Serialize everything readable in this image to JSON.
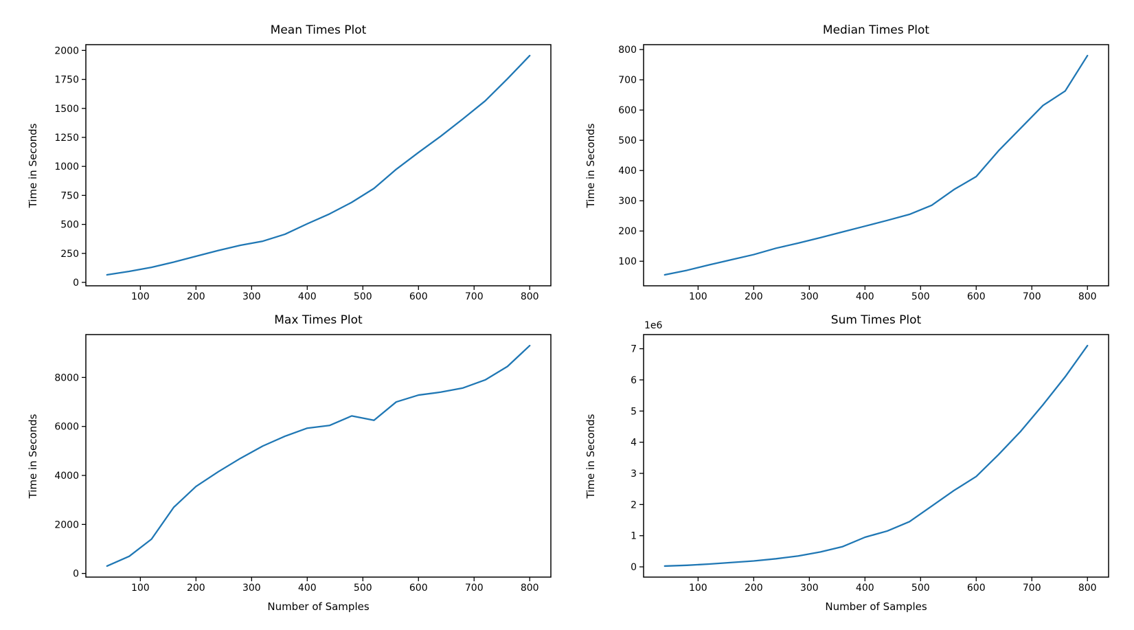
{
  "figure": {
    "background": "#ffffff"
  },
  "chart_data": [
    {
      "type": "line",
      "title": "Mean Times Plot",
      "ylabel": "Time in Seconds",
      "xlabel": "",
      "offset_text": "",
      "line_color": "#1f77b4",
      "grid": false,
      "legend": null,
      "x": [
        40,
        80,
        120,
        160,
        200,
        240,
        280,
        320,
        360,
        400,
        440,
        480,
        520,
        560,
        600,
        640,
        680,
        720,
        760,
        800
      ],
      "y": [
        65,
        95,
        130,
        175,
        225,
        275,
        320,
        355,
        415,
        505,
        590,
        690,
        810,
        975,
        1120,
        1260,
        1410,
        1565,
        1755,
        1955
      ],
      "xlim": [
        2,
        838
      ],
      "ylim": [
        -29.5,
        2049.5
      ],
      "xticks": [
        100,
        200,
        300,
        400,
        500,
        600,
        700,
        800
      ],
      "xtick_labels": [
        "100",
        "200",
        "300",
        "400",
        "500",
        "600",
        "700",
        "800"
      ],
      "yticks": [
        0,
        250,
        500,
        750,
        1000,
        1250,
        1500,
        1750,
        2000
      ],
      "ytick_labels": [
        "0",
        "250",
        "500",
        "750",
        "1000",
        "1250",
        "1500",
        "1750",
        "2000"
      ]
    },
    {
      "type": "line",
      "title": "Median Times Plot",
      "ylabel": "Time in Seconds",
      "xlabel": "",
      "offset_text": "",
      "line_color": "#1f77b4",
      "grid": false,
      "legend": null,
      "x": [
        40,
        80,
        120,
        160,
        200,
        240,
        280,
        320,
        360,
        400,
        440,
        480,
        520,
        560,
        600,
        640,
        680,
        720,
        760,
        800
      ],
      "y": [
        55,
        70,
        88,
        105,
        122,
        143,
        160,
        178,
        197,
        216,
        235,
        255,
        285,
        337,
        380,
        465,
        540,
        615,
        663,
        780
      ],
      "xlim": [
        2,
        838
      ],
      "ylim": [
        18.75,
        816.25
      ],
      "xticks": [
        100,
        200,
        300,
        400,
        500,
        600,
        700,
        800
      ],
      "xtick_labels": [
        "100",
        "200",
        "300",
        "400",
        "500",
        "600",
        "700",
        "800"
      ],
      "yticks": [
        100,
        200,
        300,
        400,
        500,
        600,
        700,
        800
      ],
      "ytick_labels": [
        "100",
        "200",
        "300",
        "400",
        "500",
        "600",
        "700",
        "800"
      ]
    },
    {
      "type": "line",
      "title": "Max Times Plot",
      "ylabel": "Time in Seconds",
      "xlabel": "Number of Samples",
      "offset_text": "",
      "line_color": "#1f77b4",
      "grid": false,
      "legend": null,
      "x": [
        40,
        80,
        120,
        160,
        200,
        240,
        280,
        320,
        360,
        400,
        440,
        480,
        520,
        560,
        600,
        640,
        680,
        720,
        760,
        800
      ],
      "y": [
        300,
        700,
        1400,
        2700,
        3550,
        4150,
        4700,
        5200,
        5600,
        5930,
        6040,
        6430,
        6250,
        7000,
        7280,
        7400,
        7570,
        7900,
        8450,
        9300
      ],
      "xlim": [
        2,
        838
      ],
      "ylim": [
        -150,
        9750
      ],
      "xticks": [
        100,
        200,
        300,
        400,
        500,
        600,
        700,
        800
      ],
      "xtick_labels": [
        "100",
        "200",
        "300",
        "400",
        "500",
        "600",
        "700",
        "800"
      ],
      "yticks": [
        0,
        2000,
        4000,
        6000,
        8000
      ],
      "ytick_labels": [
        "0",
        "2000",
        "4000",
        "6000",
        "8000"
      ]
    },
    {
      "type": "line",
      "title": "Sum Times Plot",
      "ylabel": "Time in Seconds",
      "xlabel": "Number of Samples",
      "offset_text": "1e6",
      "line_color": "#1f77b4",
      "grid": false,
      "legend": null,
      "x": [
        40,
        80,
        120,
        160,
        200,
        240,
        280,
        320,
        360,
        400,
        440,
        480,
        520,
        560,
        600,
        640,
        680,
        720,
        760,
        800
      ],
      "y": [
        25000,
        50000,
        90000,
        140000,
        190000,
        260000,
        350000,
        480000,
        650000,
        950000,
        1150000,
        1450000,
        1950000,
        2450000,
        2900000,
        3600000,
        4350000,
        5200000,
        6100000,
        7100000
      ],
      "xlim": [
        2,
        838
      ],
      "ylim": [
        -328750,
        7453750
      ],
      "xticks": [
        100,
        200,
        300,
        400,
        500,
        600,
        700,
        800
      ],
      "xtick_labels": [
        "100",
        "200",
        "300",
        "400",
        "500",
        "600",
        "700",
        "800"
      ],
      "yticks": [
        0,
        1000000,
        2000000,
        3000000,
        4000000,
        5000000,
        6000000,
        7000000
      ],
      "ytick_labels": [
        "0",
        "1",
        "2",
        "3",
        "4",
        "5",
        "6",
        "7"
      ]
    }
  ]
}
